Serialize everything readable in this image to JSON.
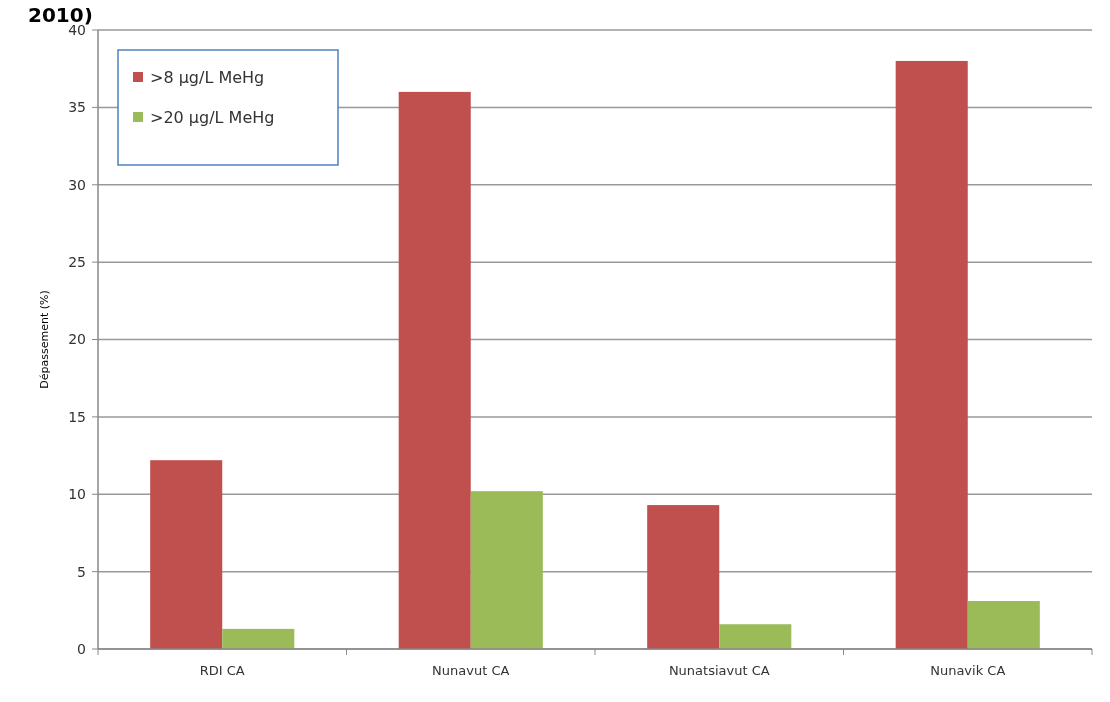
{
  "chart_data": {
    "type": "bar",
    "title": "2010)",
    "ylabel": "Dépassement (%)",
    "categories": [
      "RDI CA",
      "Nunavut CA",
      "Nunatsiavut CA",
      "Nunavik CA"
    ],
    "series": [
      {
        "name": ">8 µg/L MeHg",
        "color": "#c0504d",
        "values": [
          12.2,
          36.0,
          9.3,
          38.0
        ]
      },
      {
        "name": ">20 µg/L MeHg",
        "color": "#9bbb59",
        "values": [
          1.3,
          10.2,
          1.6,
          3.1
        ]
      }
    ],
    "ylim": [
      0,
      40
    ],
    "yticks": [
      0,
      5,
      10,
      15,
      20,
      25,
      30,
      35,
      40
    ],
    "grid": "y",
    "legend": "top left"
  }
}
